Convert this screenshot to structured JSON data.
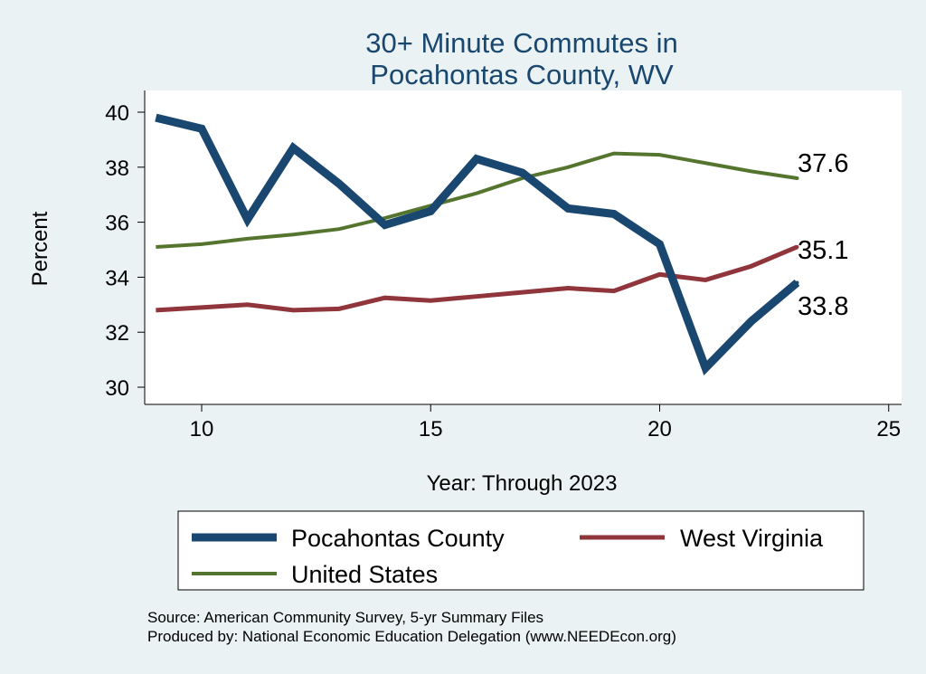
{
  "chart_data": {
    "type": "line",
    "title": [
      "30+ Minute Commutes in",
      "Pocahontas County, WV"
    ],
    "xlabel": "Year: Through 2023",
    "ylabel": "Percent",
    "xlim": [
      8.7,
      25.3
    ],
    "ylim": [
      29.3,
      40.8
    ],
    "xticks": [
      10,
      15,
      20,
      25
    ],
    "yticks": [
      30,
      32,
      34,
      36,
      38,
      40
    ],
    "grid": false,
    "x": [
      9,
      10,
      11,
      12,
      13,
      14,
      15,
      16,
      17,
      18,
      19,
      20,
      21,
      22,
      23
    ],
    "series": [
      {
        "name": "Pocahontas County",
        "color": "#1a476f",
        "values": [
          39.8,
          39.4,
          36.1,
          38.7,
          37.4,
          35.9,
          36.4,
          38.3,
          37.8,
          36.5,
          36.3,
          35.2,
          30.7,
          32.4,
          33.8
        ],
        "end_label": "33.8"
      },
      {
        "name": "West Virginia",
        "color": "#90353b",
        "values": [
          32.8,
          32.9,
          33.0,
          32.8,
          32.85,
          33.25,
          33.15,
          33.3,
          33.45,
          33.6,
          33.5,
          34.1,
          33.9,
          34.4,
          35.1
        ],
        "end_label": "35.1"
      },
      {
        "name": "United States",
        "color": "#55752f",
        "values": [
          35.1,
          35.2,
          35.4,
          35.55,
          35.75,
          36.15,
          36.6,
          37.05,
          37.6,
          38.0,
          38.5,
          38.45,
          38.15,
          37.85,
          37.6
        ],
        "end_label": "37.6"
      }
    ],
    "legend_placement": "bottom",
    "notes": [
      "Source: American Community Survey, 5-yr Summary Files",
      "Produced by: National Economic Education Delegation (www.NEEDEcon.org)"
    ]
  }
}
